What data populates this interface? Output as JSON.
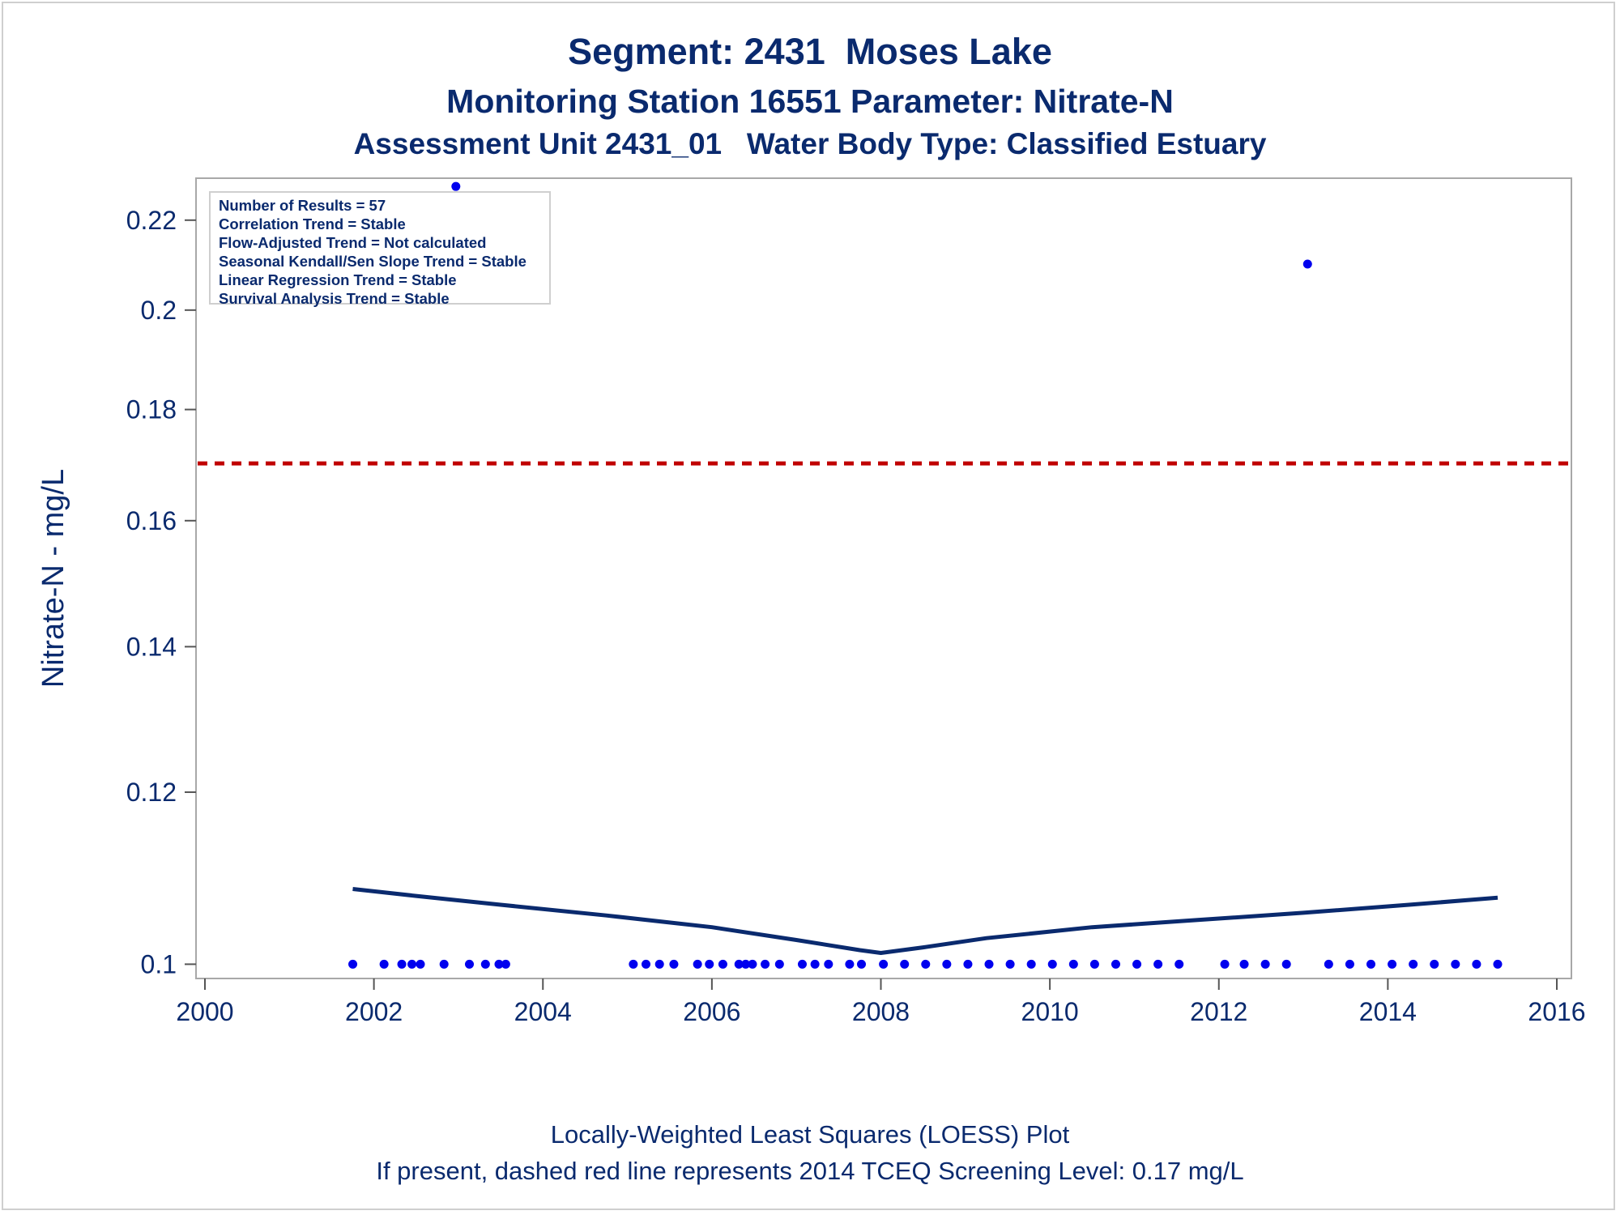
{
  "titles": [
    "Segment: 2431  Moses Lake",
    "Monitoring Station 16551 Parameter: Nitrate-N",
    "Assessment Unit 2431_01   Water Body Type: Classified Estuary"
  ],
  "stats_box": [
    "Number of Results = 57",
    "Correlation Trend = Stable",
    "Flow-Adjusted Trend = Not calculated",
    "Seasonal Kendall/Sen Slope Trend = Stable",
    "Linear Regression Trend = Stable",
    "Survival Analysis Trend = Stable"
  ],
  "footer": [
    "Locally-Weighted Least Squares (LOESS) Plot",
    "If present, dashed red line represents 2014 TCEQ Screening Level: 0.17 mg/L"
  ],
  "chart_data": {
    "type": "scatter",
    "xlabel": "",
    "ylabel": "Nitrate-N - mg/L",
    "y_scale": "log",
    "xlim": [
      2000,
      2016
    ],
    "ylim": [
      0.0985,
      0.23
    ],
    "x_ticks": [
      2000,
      2002,
      2004,
      2006,
      2008,
      2010,
      2012,
      2014,
      2016
    ],
    "y_ticks": [
      0.1,
      0.12,
      0.14,
      0.16,
      0.18,
      0.2,
      0.22
    ],
    "grid": false,
    "screening_level": {
      "value": 0.17,
      "style": "dashed",
      "color": "#c00000"
    },
    "colors": {
      "points": "#0000ee",
      "loess": "#0a2a6e",
      "text": "#0a2a6e"
    },
    "points": [
      {
        "x": 2001.75,
        "y": 0.1
      },
      {
        "x": 2002.12,
        "y": 0.1
      },
      {
        "x": 2002.33,
        "y": 0.1
      },
      {
        "x": 2002.45,
        "y": 0.1
      },
      {
        "x": 2002.55,
        "y": 0.1
      },
      {
        "x": 2002.83,
        "y": 0.1
      },
      {
        "x": 2002.97,
        "y": 0.228
      },
      {
        "x": 2003.13,
        "y": 0.1
      },
      {
        "x": 2003.32,
        "y": 0.1
      },
      {
        "x": 2003.48,
        "y": 0.1
      },
      {
        "x": 2003.56,
        "y": 0.1
      },
      {
        "x": 2005.07,
        "y": 0.1
      },
      {
        "x": 2005.22,
        "y": 0.1
      },
      {
        "x": 2005.38,
        "y": 0.1
      },
      {
        "x": 2005.55,
        "y": 0.1
      },
      {
        "x": 2005.83,
        "y": 0.1
      },
      {
        "x": 2005.97,
        "y": 0.1
      },
      {
        "x": 2006.13,
        "y": 0.1
      },
      {
        "x": 2006.32,
        "y": 0.1
      },
      {
        "x": 2006.4,
        "y": 0.1
      },
      {
        "x": 2006.48,
        "y": 0.1
      },
      {
        "x": 2006.63,
        "y": 0.1
      },
      {
        "x": 2006.8,
        "y": 0.1
      },
      {
        "x": 2007.07,
        "y": 0.1
      },
      {
        "x": 2007.22,
        "y": 0.1
      },
      {
        "x": 2007.38,
        "y": 0.1
      },
      {
        "x": 2007.63,
        "y": 0.1
      },
      {
        "x": 2007.77,
        "y": 0.1
      },
      {
        "x": 2008.03,
        "y": 0.1
      },
      {
        "x": 2008.28,
        "y": 0.1
      },
      {
        "x": 2008.53,
        "y": 0.1
      },
      {
        "x": 2008.78,
        "y": 0.1
      },
      {
        "x": 2009.03,
        "y": 0.1
      },
      {
        "x": 2009.28,
        "y": 0.1
      },
      {
        "x": 2009.53,
        "y": 0.1
      },
      {
        "x": 2009.78,
        "y": 0.1
      },
      {
        "x": 2010.03,
        "y": 0.1
      },
      {
        "x": 2010.28,
        "y": 0.1
      },
      {
        "x": 2010.53,
        "y": 0.1
      },
      {
        "x": 2010.78,
        "y": 0.1
      },
      {
        "x": 2011.03,
        "y": 0.1
      },
      {
        "x": 2011.28,
        "y": 0.1
      },
      {
        "x": 2011.53,
        "y": 0.1
      },
      {
        "x": 2012.07,
        "y": 0.1
      },
      {
        "x": 2012.3,
        "y": 0.1
      },
      {
        "x": 2012.55,
        "y": 0.1
      },
      {
        "x": 2012.8,
        "y": 0.1
      },
      {
        "x": 2013.05,
        "y": 0.21
      },
      {
        "x": 2013.3,
        "y": 0.1
      },
      {
        "x": 2013.55,
        "y": 0.1
      },
      {
        "x": 2013.8,
        "y": 0.1
      },
      {
        "x": 2014.05,
        "y": 0.1
      },
      {
        "x": 2014.3,
        "y": 0.1
      },
      {
        "x": 2014.55,
        "y": 0.1
      },
      {
        "x": 2014.8,
        "y": 0.1
      },
      {
        "x": 2015.05,
        "y": 0.1
      },
      {
        "x": 2015.3,
        "y": 0.1
      }
    ],
    "loess": [
      {
        "x": 2001.75,
        "y": 0.1083
      },
      {
        "x": 2002.5,
        "y": 0.1075
      },
      {
        "x": 2003.5,
        "y": 0.1065
      },
      {
        "x": 2004.75,
        "y": 0.1053
      },
      {
        "x": 2006.0,
        "y": 0.104
      },
      {
        "x": 2007.0,
        "y": 0.1026
      },
      {
        "x": 2007.75,
        "y": 0.1015
      },
      {
        "x": 2008.0,
        "y": 0.1012
      },
      {
        "x": 2008.5,
        "y": 0.1018
      },
      {
        "x": 2009.25,
        "y": 0.1028
      },
      {
        "x": 2010.5,
        "y": 0.104
      },
      {
        "x": 2011.75,
        "y": 0.1048
      },
      {
        "x": 2013.0,
        "y": 0.1056
      },
      {
        "x": 2014.25,
        "y": 0.1065
      },
      {
        "x": 2015.3,
        "y": 0.1073
      }
    ]
  }
}
